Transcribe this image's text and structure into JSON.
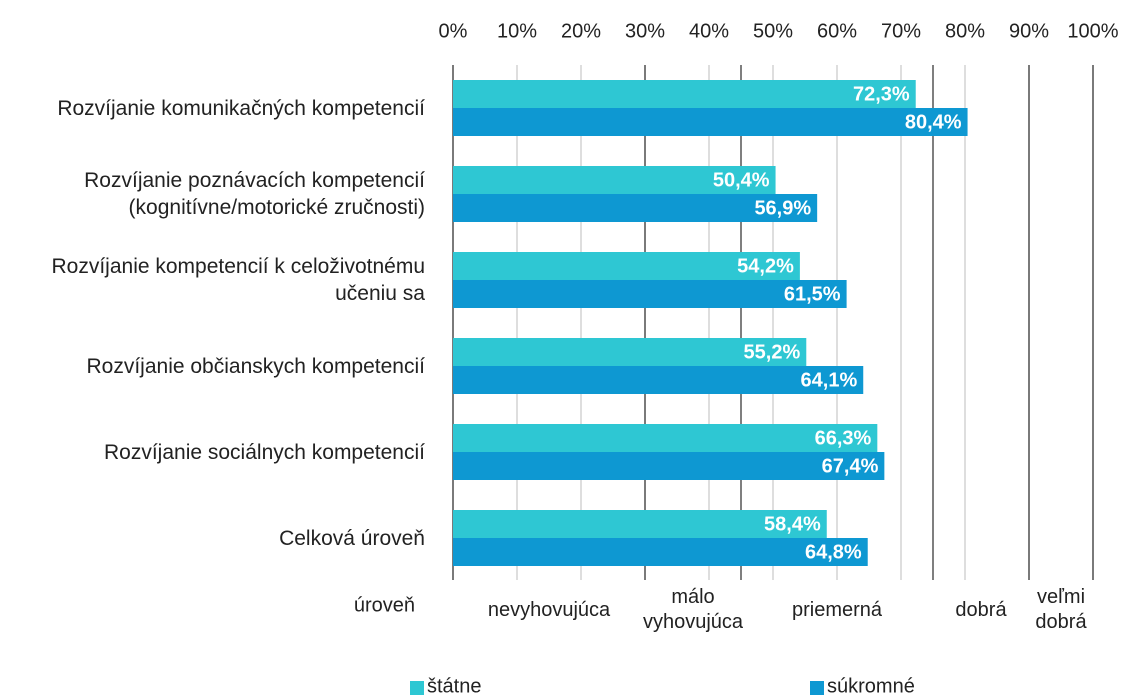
{
  "chart_data": {
    "type": "bar",
    "orientation": "horizontal",
    "categories": [
      "Rozvíjanie komunikačných kompetencií",
      "Rozvíjanie poznávacích kompetencií (kognitívne/motorické zručnosti)",
      "Rozvíjanie kompetencií k celoživotnému učeniu sa",
      "Rozvíjanie občianskych kompetencií",
      "Rozvíjanie sociálnych kompetencií",
      "Celková úroveň"
    ],
    "series": [
      {
        "name": "štátne",
        "color": "#2ec7d3",
        "values": [
          72.3,
          50.4,
          54.2,
          55.2,
          66.3,
          58.4
        ],
        "value_labels": [
          "72,3%",
          "50,4%",
          "54,2%",
          "55,2%",
          "66,3%",
          "58,4%"
        ]
      },
      {
        "name": "súkromné",
        "color": "#0e98d2",
        "values": [
          80.4,
          56.9,
          61.5,
          64.1,
          67.4,
          64.8
        ],
        "value_labels": [
          "80,4%",
          "56,9%",
          "61,5%",
          "64,1%",
          "67,4%",
          "64,8%"
        ]
      }
    ],
    "xlim": [
      0,
      100
    ],
    "xticks": [
      {
        "value": 0,
        "label": "0%"
      },
      {
        "value": 10,
        "label": "10%"
      },
      {
        "value": 20,
        "label": "20%"
      },
      {
        "value": 30,
        "label": "30%"
      },
      {
        "value": 40,
        "label": "40%"
      },
      {
        "value": 50,
        "label": "50%"
      },
      {
        "value": 60,
        "label": "60%"
      },
      {
        "value": 70,
        "label": "70%"
      },
      {
        "value": 80,
        "label": "80%"
      },
      {
        "value": 90,
        "label": "90%"
      },
      {
        "value": 100,
        "label": "100%"
      }
    ],
    "grid": true,
    "levels_title": "úroveň",
    "level_bounds": [
      0,
      30,
      45,
      75,
      90,
      100
    ],
    "levels": [
      "nevyhovujúca",
      "málo vyhovujúca",
      "priemerná",
      "dobrá",
      "veľmi dobrá"
    ],
    "legend": "bottom"
  }
}
